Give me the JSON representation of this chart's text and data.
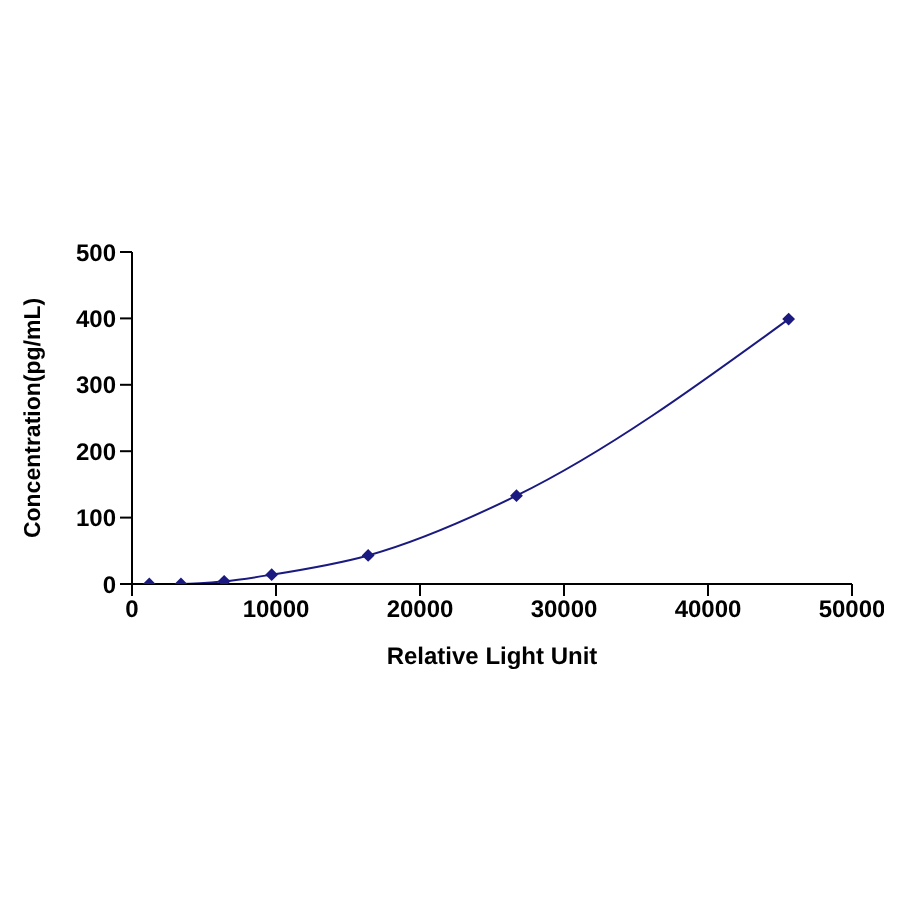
{
  "chart_data": {
    "type": "line",
    "xlabel": "Relative Light Unit",
    "ylabel": "Concentration(pg/mL)",
    "x": [
      1200,
      3400,
      6400,
      9700,
      16400,
      26700,
      45600
    ],
    "series": [
      {
        "color": "#1a1a80",
        "values": [
          0,
          0,
          4,
          14,
          43,
          133,
          399
        ]
      }
    ],
    "xlim": [
      0,
      50000
    ],
    "xticks": [
      0,
      10000,
      20000,
      30000,
      40000,
      50000
    ],
    "ylim": [
      0,
      500
    ],
    "yticks": [
      0,
      100,
      200,
      300,
      400,
      500
    ],
    "grid": false,
    "marker": "diamond",
    "line_style": "solid"
  }
}
